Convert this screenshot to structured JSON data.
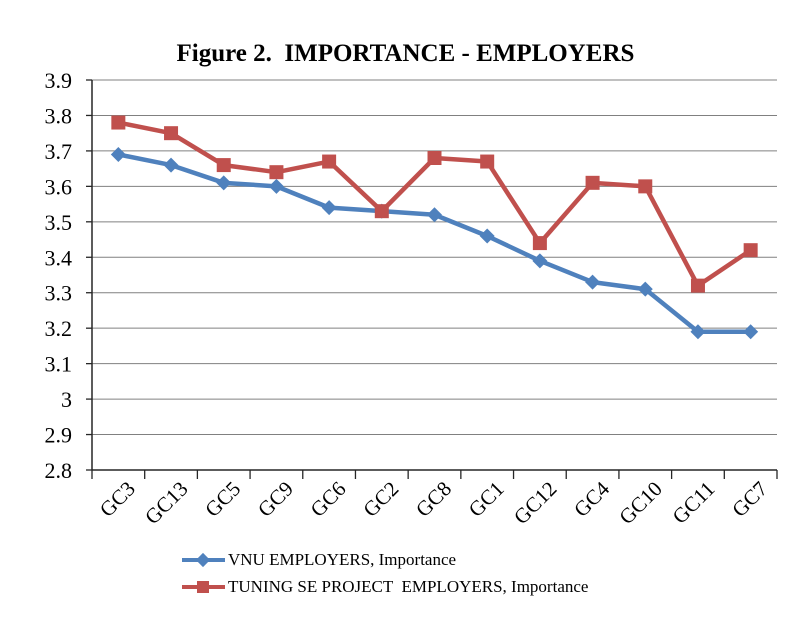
{
  "chart_data": {
    "type": "line",
    "title": "Figure 2.  IMPORTANCE - EMPLOYERS",
    "xlabel": "",
    "ylabel": "",
    "categories": [
      "GC3",
      "GC13",
      "GC5",
      "GC9",
      "GC6",
      "GC2",
      "GC8",
      "GC1",
      "GC12",
      "GC4",
      "GC10",
      "GC11",
      "GC7"
    ],
    "series": [
      {
        "name": "VNU EMPLOYERS, Importance",
        "color": "#4F81BD",
        "marker": "diamond",
        "values": [
          3.69,
          3.66,
          3.61,
          3.6,
          3.54,
          3.53,
          3.52,
          3.46,
          3.39,
          3.33,
          3.31,
          3.19,
          3.19
        ]
      },
      {
        "name": "TUNING SE PROJECT  EMPLOYERS, Importance",
        "color": "#C0504D",
        "marker": "square",
        "values": [
          3.78,
          3.75,
          3.66,
          3.64,
          3.67,
          3.53,
          3.68,
          3.67,
          3.44,
          3.61,
          3.6,
          3.32,
          3.42
        ]
      }
    ],
    "ylim": [
      2.8,
      3.9
    ],
    "ytick_step": 0.1,
    "yticks": [
      "3.9",
      "3.8",
      "3.7",
      "3.6",
      "3.5",
      "3.4",
      "3.3",
      "3.2",
      "3.1",
      "3",
      "2.9",
      "2.8"
    ],
    "grid": true,
    "gridline_color": "#808080",
    "axis_color": "#262626",
    "legend_position": "bottom"
  }
}
